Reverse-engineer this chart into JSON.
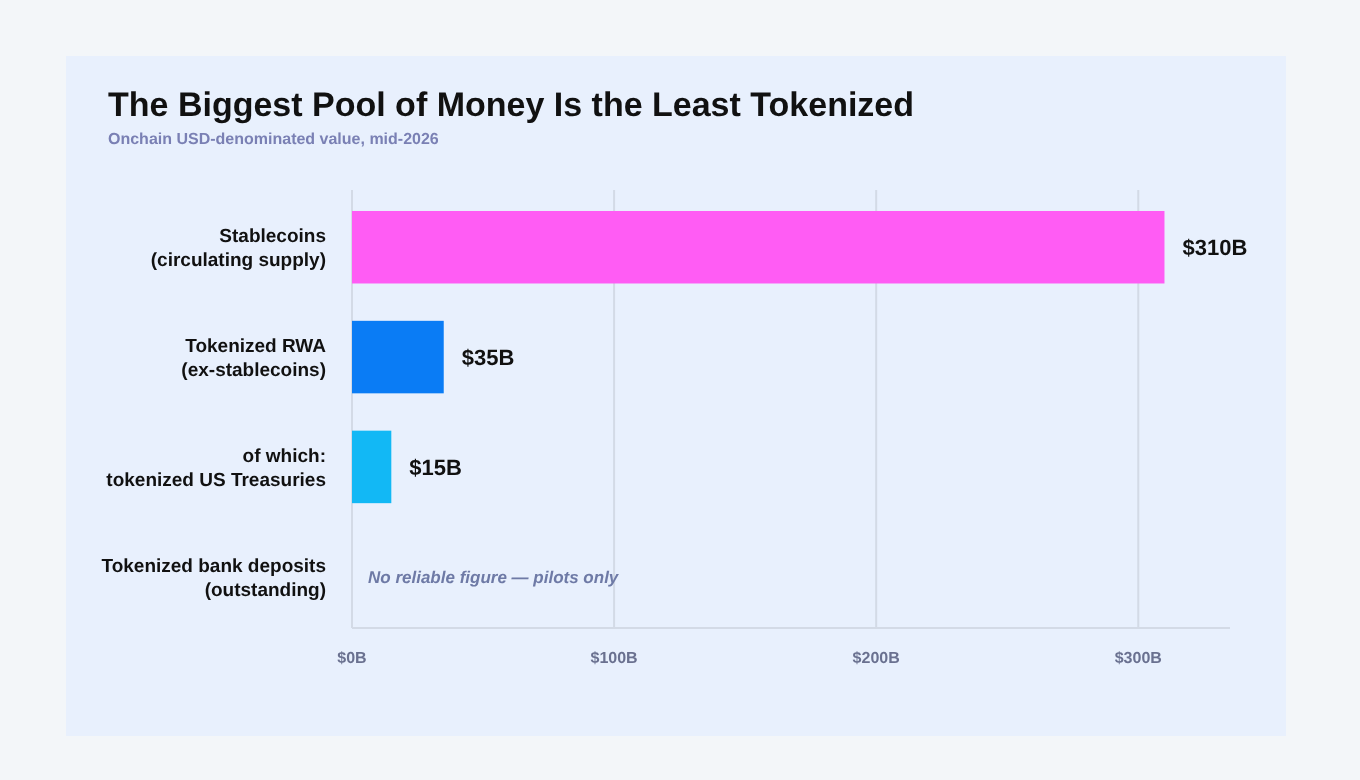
{
  "chart_data": {
    "type": "bar",
    "orientation": "horizontal",
    "title": "The Biggest Pool of Money Is the Least Tokenized",
    "subtitle": "Onchain USD-denominated value, mid-2026",
    "categories": [
      "Stablecoins\n(circulating supply)",
      "Tokenized RWA\n(ex-stablecoins)",
      "of which:\ntokenized US Treasuries",
      "Tokenized bank deposits\n(outstanding)"
    ],
    "values": [
      310,
      35,
      15,
      null
    ],
    "colors": [
      "#ff5cf4",
      "#0a7cf5",
      "#12b8f5",
      null
    ],
    "value_labels": [
      "$310B",
      "$35B",
      "$15B",
      null
    ],
    "xlim": [
      0,
      335
    ],
    "xticks": [
      {
        "value": 0,
        "label": "$0B"
      },
      {
        "value": 100,
        "label": "$100B"
      },
      {
        "value": 200,
        "label": "$200B"
      },
      {
        "value": 300,
        "label": "$300B"
      }
    ],
    "grid": "x",
    "annotations": [
      "No reliable figure — pilots only"
    ]
  }
}
